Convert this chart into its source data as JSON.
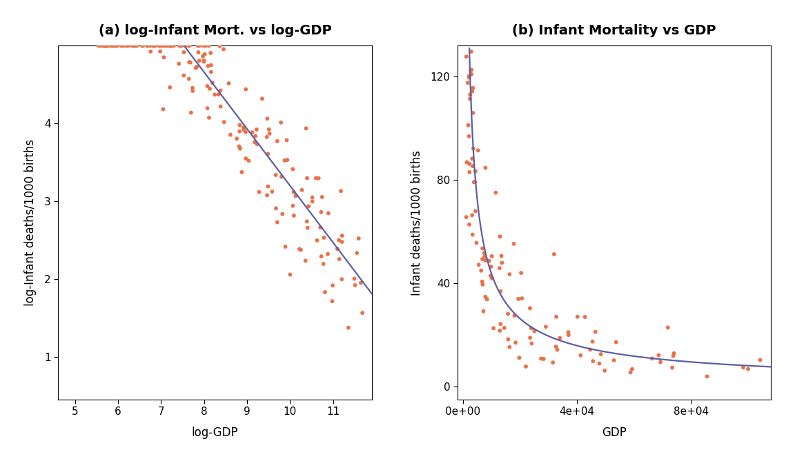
{
  "title_a": "(a) log-Infant Mort. vs log-GDP",
  "title_b": "(b) Infant Mortality vs GDP",
  "xlabel_a": "log-GDP",
  "ylabel_a": "log-Infant deaths/1000 births",
  "xlabel_b": "GDP",
  "ylabel_b": "Infant deaths/1000 births",
  "dot_color": "#E8724A",
  "line_color": "#5B5EA6",
  "bg_color": "#FFFFFF",
  "title_fontsize": 14,
  "label_fontsize": 12,
  "tick_fontsize": 11,
  "slr_intercept": 10.5,
  "slr_slope": -0.73,
  "xlim_a": [
    4.6,
    11.9
  ],
  "ylim_a": [
    0.45,
    5.0
  ],
  "xticks_a": [
    5,
    6,
    7,
    8,
    9,
    10,
    11
  ],
  "yticks_a": [
    1,
    2,
    3,
    4
  ],
  "xlim_b": [
    -2000,
    108000
  ],
  "ylim_b": [
    -5,
    132
  ],
  "yticks_b": [
    0,
    40,
    80,
    120
  ],
  "xticks_b": [
    0,
    40000,
    80000
  ],
  "xticklabels_b": [
    "0e+00",
    "4e+04",
    "8e+04"
  ],
  "dot_size": 18,
  "line_width": 1.6,
  "seed": 17
}
